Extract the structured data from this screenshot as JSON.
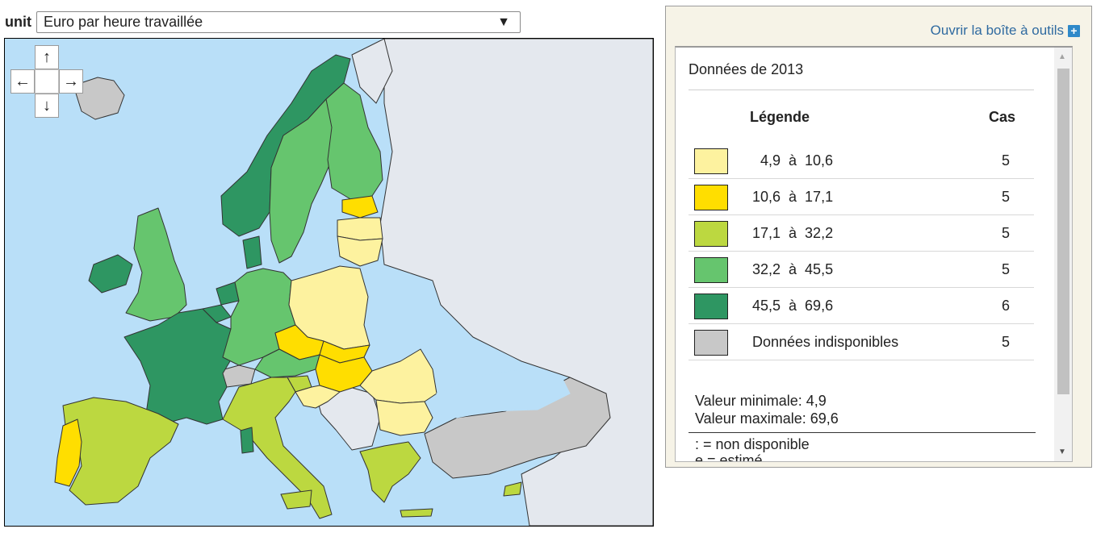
{
  "unit": {
    "label": "unit",
    "selected": "Euro par heure travaillée",
    "arrow": "▼"
  },
  "nav": {
    "up": "↑",
    "left": "←",
    "right": "→",
    "down": "↓"
  },
  "panel": {
    "toolbox_link": "Ouvrir la boîte à outils",
    "toolbox_icon": "+",
    "year_title": "Données de 2013",
    "header_legend": "Légende",
    "header_cases": "Cas",
    "legend": [
      {
        "label": "  4,9  à  10,6",
        "count": "5",
        "color": "#fdf29f"
      },
      {
        "label": "10,6  à  17,1",
        "count": "5",
        "color": "#ffde00"
      },
      {
        "label": "17,1  à  32,2",
        "count": "5",
        "color": "#bcd840"
      },
      {
        "label": "32,2  à  45,5",
        "count": "5",
        "color": "#66c56e"
      },
      {
        "label": "45,5  à  69,6",
        "count": "6",
        "color": "#2e9662"
      },
      {
        "label": "Données indisponibles",
        "count": "5",
        "color": "#c8c8c8"
      }
    ],
    "min_value": "Valeur minimale: 4,9",
    "max_value": "Valeur maximale: 69,6",
    "note_na": ": = non disponible",
    "note_est": "e = estimé"
  },
  "colors": {
    "sea": "#b9dff8",
    "non_eu": "#e4e8ee",
    "border": "#333333"
  }
}
